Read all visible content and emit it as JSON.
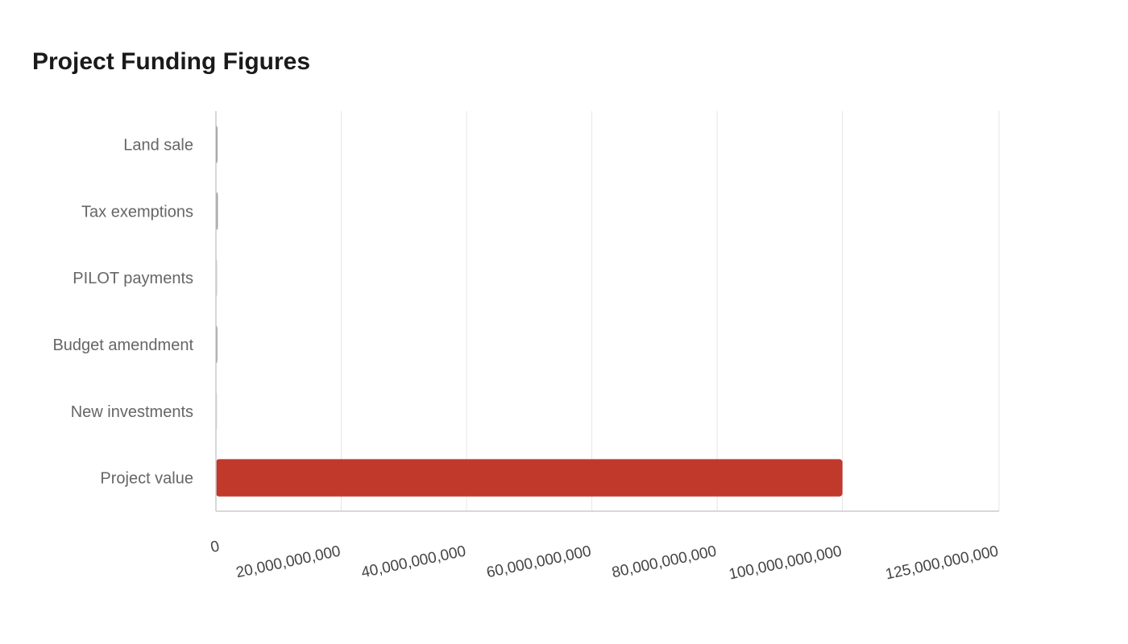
{
  "chart_data": {
    "type": "bar",
    "orientation": "horizontal",
    "title": "Project Funding Figures",
    "xlabel": "",
    "ylabel": "",
    "categories": [
      "Land sale",
      "Tax exemptions",
      "PILOT payments",
      "Budget amendment",
      "New investments",
      "Project value"
    ],
    "values": [
      200000000,
      300000000,
      100000000,
      150000000,
      80000000,
      100000000000
    ],
    "bar_colors": [
      "#555555",
      "#999999",
      "#cccccc",
      "#666666",
      "#dddddd",
      "#c0392b"
    ],
    "xlim": [
      0,
      125000000000
    ],
    "x_ticks": [
      0,
      20000000000,
      40000000000,
      60000000000,
      80000000000,
      100000000000,
      125000000000
    ],
    "x_tick_labels": [
      "0",
      "20,000,000,000",
      "40,000,000,000",
      "60,000,000,000",
      "80,000,000,000",
      "100,000,000,000",
      "125,000,000,000"
    ],
    "grid": true,
    "legend": "none"
  }
}
